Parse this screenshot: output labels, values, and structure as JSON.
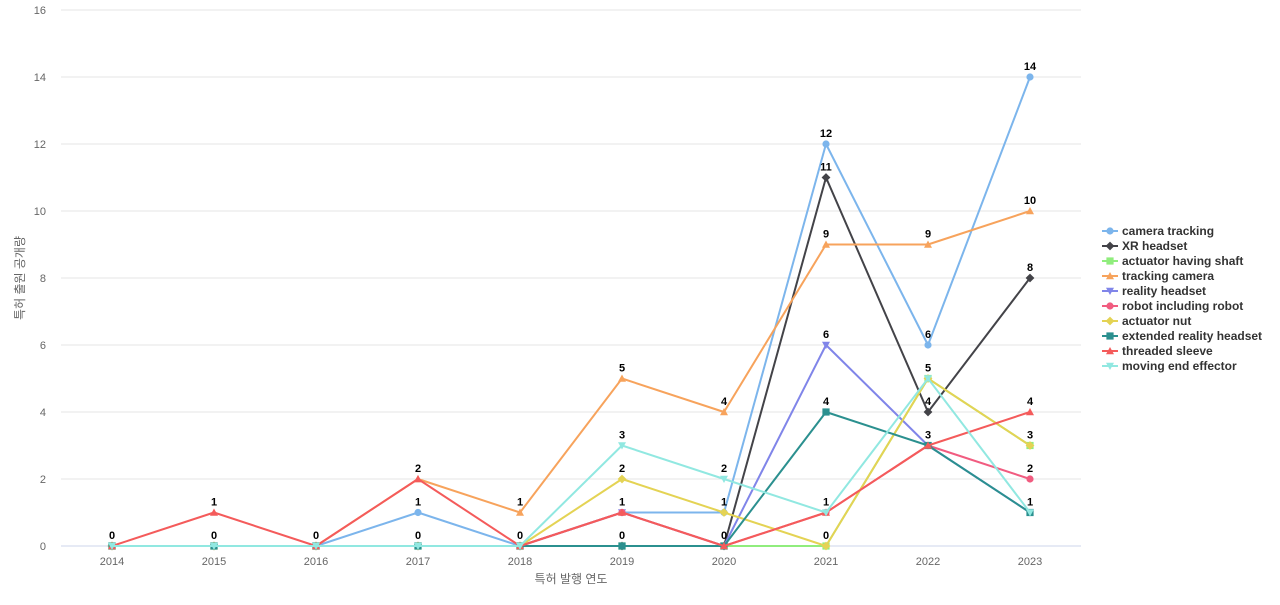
{
  "chart_data": {
    "type": "line",
    "title": "",
    "xlabel": "특허 발행 연도",
    "ylabel": "특허 출원 공개량",
    "ylim": [
      0,
      16
    ],
    "yticks": [
      0,
      2,
      4,
      6,
      8,
      10,
      12,
      14,
      16
    ],
    "grid": true,
    "legend_position": "right",
    "categories": [
      "2014",
      "2015",
      "2016",
      "2017",
      "2018",
      "2019",
      "2020",
      "2021",
      "2022",
      "2023"
    ],
    "series": [
      {
        "name": "camera tracking",
        "color": "#7cb5ec",
        "marker": "circle",
        "values": [
          0,
          0,
          0,
          1,
          0,
          1,
          1,
          12,
          6,
          14
        ]
      },
      {
        "name": "XR headset",
        "color": "#434348",
        "marker": "diamond",
        "values": [
          0,
          0,
          0,
          0,
          0,
          0,
          0,
          11,
          4,
          8
        ]
      },
      {
        "name": "actuator having shaft",
        "color": "#90ed7d",
        "marker": "square",
        "values": [
          0,
          0,
          0,
          0,
          0,
          0,
          0,
          0,
          5,
          3
        ]
      },
      {
        "name": "tracking camera",
        "color": "#f7a35c",
        "marker": "triangle",
        "values": [
          0,
          0,
          0,
          2,
          1,
          5,
          4,
          9,
          9,
          10
        ]
      },
      {
        "name": "reality headset",
        "color": "#8085e9",
        "marker": "triangle-down",
        "values": [
          0,
          0,
          0,
          0,
          0,
          1,
          0,
          6,
          3,
          1
        ]
      },
      {
        "name": "robot including robot",
        "color": "#f15c80",
        "marker": "circle",
        "values": [
          0,
          0,
          0,
          0,
          0,
          1,
          0,
          1,
          3,
          2
        ]
      },
      {
        "name": "actuator nut",
        "color": "#e4d354",
        "marker": "diamond",
        "values": [
          0,
          0,
          0,
          0,
          0,
          2,
          1,
          0,
          5,
          3
        ]
      },
      {
        "name": "extended reality headset",
        "color": "#2b908f",
        "marker": "square",
        "values": [
          0,
          0,
          0,
          0,
          0,
          0,
          0,
          4,
          3,
          1
        ]
      },
      {
        "name": "threaded sleeve",
        "color": "#f45b5b",
        "marker": "triangle",
        "values": [
          0,
          1,
          0,
          2,
          0,
          1,
          0,
          1,
          3,
          4
        ]
      },
      {
        "name": "moving end effector",
        "color": "#91e8e1",
        "marker": "triangle-down",
        "values": [
          0,
          0,
          0,
          0,
          0,
          3,
          2,
          1,
          5,
          1
        ]
      }
    ],
    "data_labels": {
      "2014": [
        0
      ],
      "2015": [
        1,
        0
      ],
      "2016": [
        0
      ],
      "2017": [
        2,
        1,
        0
      ],
      "2018": [
        1,
        0
      ],
      "2019": [
        5,
        3,
        2,
        1,
        0
      ],
      "2020": [
        4,
        2,
        1,
        0
      ],
      "2021": [
        12,
        11,
        9,
        6,
        4,
        1,
        0
      ],
      "2022": [
        9,
        6,
        5,
        4,
        3
      ],
      "2023": [
        14,
        10,
        8,
        4,
        3,
        2,
        1
      ]
    }
  }
}
